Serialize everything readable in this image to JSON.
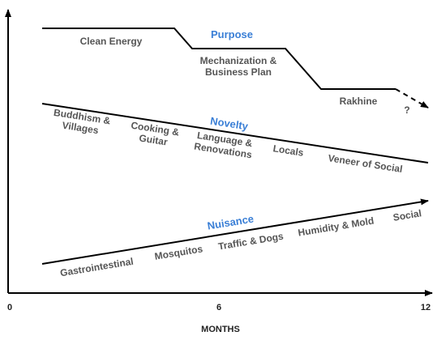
{
  "x_axis": {
    "title": "MONTHS",
    "ticks": [
      "0",
      "6",
      "12"
    ]
  },
  "purpose": {
    "title": "Purpose",
    "labels": [
      "Clean Energy",
      "Mechanization &",
      "Business Plan",
      "Rakhine",
      "?"
    ]
  },
  "novelty": {
    "title": "Novelty",
    "labels": [
      "Buddhism &",
      "Villages",
      "Cooking &",
      "Guitar",
      "Language &",
      "Renovations",
      "Locals",
      "Veneer of Social"
    ]
  },
  "nuisance": {
    "title": "Nuisance",
    "labels": [
      "Gastrointestinal",
      "Mosquitos",
      "Traffic & Dogs",
      "Humidity & Mold",
      "Social"
    ]
  },
  "colors": {
    "title_blue": "#3a7fd6",
    "label_gray": "#555555",
    "line": "#000000"
  }
}
